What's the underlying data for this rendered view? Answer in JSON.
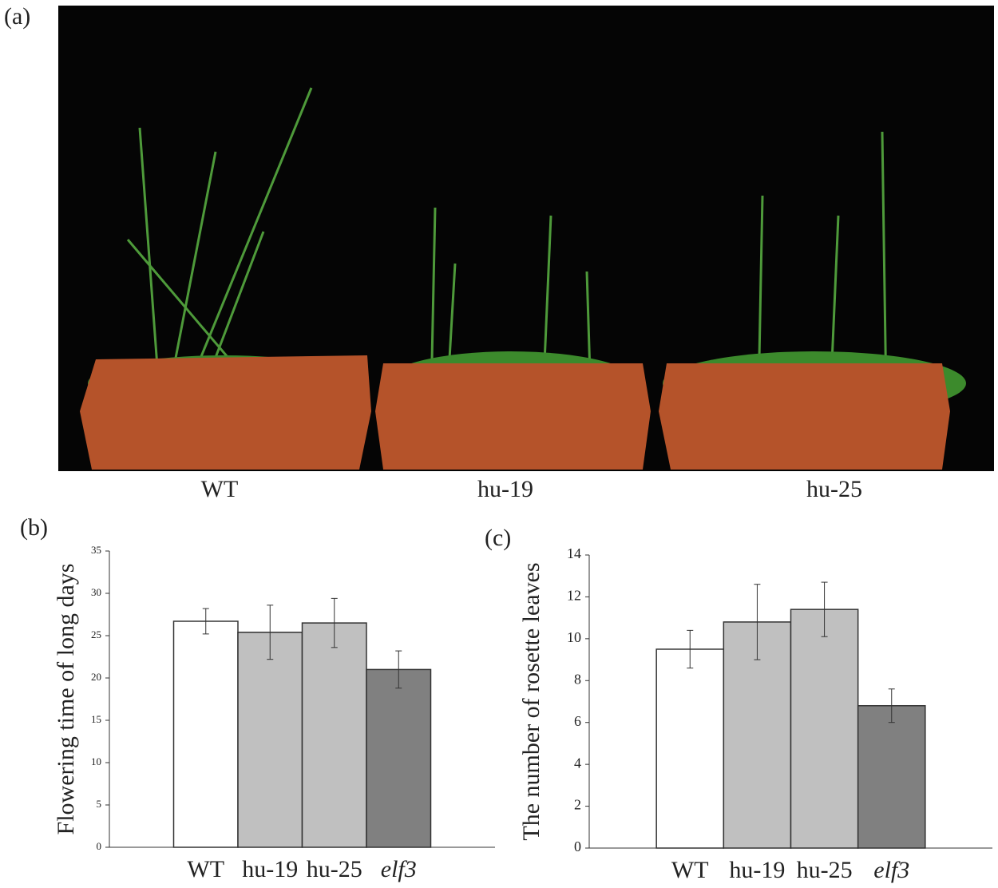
{
  "photo": {
    "panel_label": "(a)",
    "labels": [
      "WT",
      "hu-19",
      "hu-25"
    ]
  },
  "chart_data": [
    {
      "type": "bar",
      "panel_label": "(b)",
      "y_label": "Flowering time of long days",
      "categories": [
        "WT",
        "hu-19",
        "hu-25",
        "elf3"
      ],
      "values": [
        26.7,
        25.4,
        26.5,
        21.0
      ],
      "errors": [
        1.5,
        3.2,
        2.9,
        2.2
      ],
      "colors": [
        "#ffffff",
        "#c0c0c0",
        "#c0c0c0",
        "#808080"
      ],
      "ylim": [
        0,
        35
      ],
      "yticks": [
        0,
        5,
        10,
        15,
        20,
        25,
        30,
        35
      ]
    },
    {
      "type": "bar",
      "panel_label": "(c)",
      "y_label": "The number of rosette leaves",
      "categories": [
        "WT",
        "hu-19",
        "hu-25",
        "elf3"
      ],
      "values": [
        9.5,
        10.8,
        11.4,
        6.8
      ],
      "errors": [
        0.9,
        1.8,
        1.3,
        0.8
      ],
      "colors": [
        "#ffffff",
        "#c0c0c0",
        "#c0c0c0",
        "#808080"
      ],
      "ylim": [
        0,
        14
      ],
      "yticks": [
        0,
        2,
        4,
        6,
        8,
        10,
        12,
        14
      ]
    }
  ]
}
